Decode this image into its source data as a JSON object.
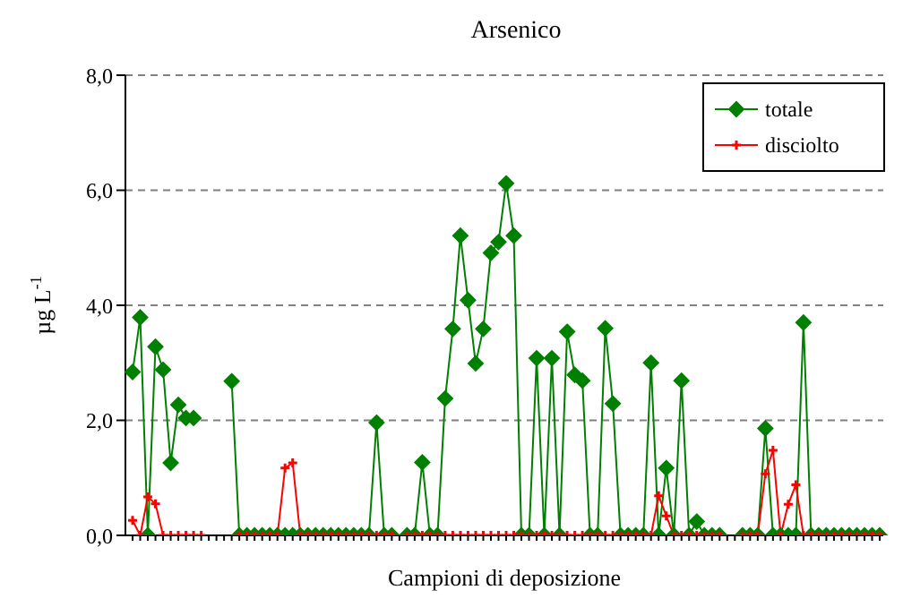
{
  "chart_data": {
    "type": "line",
    "title": "Arsenico",
    "xlabel": "Campioni di deposizione",
    "ylabel": "µg L$^{-1}$",
    "categories": [
      null,
      null,
      null,
      null,
      null,
      null,
      null,
      null,
      null,
      null,
      null,
      null,
      null,
      null,
      null,
      null,
      null,
      null,
      null,
      null,
      null,
      null,
      null,
      null,
      null,
      null,
      null,
      null,
      null,
      null,
      null,
      null,
      null,
      null,
      null,
      null,
      null,
      null,
      null,
      null,
      null,
      null,
      null,
      null,
      null,
      null,
      null,
      null,
      null,
      null,
      null,
      null,
      null,
      null,
      null,
      null,
      null,
      null,
      null,
      null,
      null,
      null,
      null,
      null,
      null,
      null,
      null,
      null,
      null,
      null,
      null,
      null,
      null,
      null,
      null,
      null,
      null,
      null,
      null,
      null,
      null,
      null,
      null,
      null,
      null,
      null,
      null,
      null,
      null,
      null,
      null,
      null,
      null,
      null,
      null,
      null,
      null,
      null,
      null
    ],
    "series": [
      {
        "name": "totale",
        "color": "#008000",
        "marker": "diamond",
        "values": [
          2.84,
          3.79,
          0,
          3.28,
          2.88,
          1.26,
          2.27,
          2.04,
          2.04,
          null,
          null,
          null,
          null,
          2.68,
          0,
          0,
          0,
          0,
          0,
          0,
          0,
          0,
          0,
          0,
          0,
          0,
          0,
          0,
          0,
          0,
          0,
          0,
          1.96,
          0,
          0,
          null,
          0,
          0,
          1.27,
          0,
          0,
          2.38,
          3.59,
          5.21,
          4.09,
          2.99,
          3.59,
          4.91,
          5.1,
          6.12,
          5.21,
          0,
          0,
          3.08,
          0,
          3.08,
          0,
          3.54,
          2.79,
          2.69,
          0,
          0,
          3.6,
          2.29,
          0,
          0,
          0,
          0,
          3.0,
          0,
          1.17,
          0,
          2.69,
          0,
          0.24,
          0,
          0,
          0,
          null,
          null,
          0,
          0,
          0,
          1.86,
          0,
          0,
          0,
          0,
          3.7,
          0,
          0,
          0,
          0,
          0,
          0,
          0,
          0,
          0,
          0
        ]
      },
      {
        "name": "disciolto",
        "color": "#ff0000",
        "marker": "cross",
        "values": [
          0.26,
          0,
          0.67,
          0.55,
          0,
          0,
          0,
          0,
          0,
          0,
          null,
          null,
          null,
          null,
          0,
          0,
          0,
          0,
          0,
          0,
          1.17,
          1.26,
          0,
          0,
          0,
          0,
          0,
          0,
          0,
          0,
          0,
          0,
          0,
          0,
          0,
          null,
          0,
          0,
          0,
          0,
          0,
          0,
          0,
          0,
          0,
          0,
          0,
          0,
          0,
          0,
          0,
          0,
          0,
          0,
          0,
          0,
          0,
          0,
          0,
          0,
          0,
          0,
          0,
          0,
          0,
          0,
          0,
          0,
          0,
          0.69,
          0.34,
          0,
          0,
          0,
          0,
          0,
          0,
          0,
          null,
          null,
          0,
          0,
          0,
          1.07,
          1.48,
          0,
          0.54,
          0.88,
          0,
          0,
          0,
          0,
          0,
          0,
          0,
          0,
          0,
          0,
          0
        ]
      }
    ],
    "ylim": [
      0,
      8
    ],
    "yticks": [
      {
        "value": 0,
        "label": "0,0"
      },
      {
        "value": 2,
        "label": "2,0"
      },
      {
        "value": 4,
        "label": "4,0"
      },
      {
        "value": 6,
        "label": "6,0"
      },
      {
        "value": 8,
        "label": "8,0"
      }
    ],
    "grid": "y",
    "legend": "top right"
  }
}
